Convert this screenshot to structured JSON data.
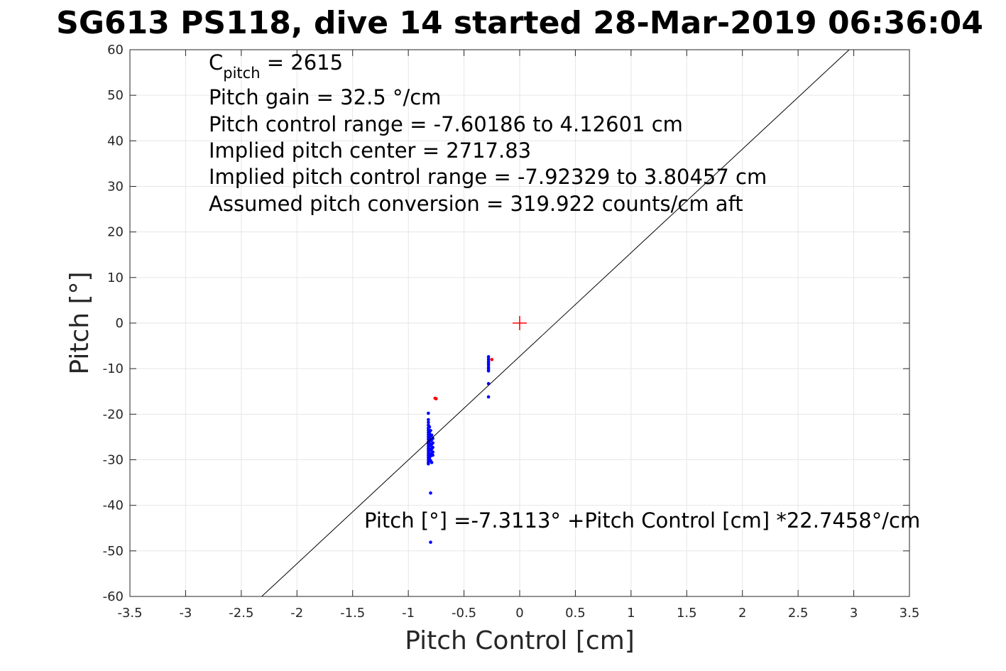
{
  "chart_data": {
    "type": "scatter",
    "title": "SG613 PS118, dive 14 started 28-Mar-2019 06:36:04",
    "xlabel": "Pitch Control [cm]",
    "ylabel": "Pitch [°]",
    "xlim": [
      -3.5,
      3.5
    ],
    "ylim": [
      -60,
      60
    ],
    "xticks": [
      -3.5,
      -3,
      -2.5,
      -2,
      -1.5,
      -1,
      -0.5,
      0,
      0.5,
      1,
      1.5,
      2,
      2.5,
      3,
      3.5
    ],
    "xtick_labels": [
      "-3.5",
      "-3",
      "-2.5",
      "-2",
      "-1.5",
      "-1",
      "-0.5",
      "0",
      "0.5",
      "1",
      "1.5",
      "2",
      "2.5",
      "3",
      "3.5"
    ],
    "yticks": [
      -60,
      -50,
      -40,
      -30,
      -20,
      -10,
      0,
      10,
      20,
      30,
      40,
      50,
      60
    ],
    "ytick_labels": [
      "-60",
      "-50",
      "-40",
      "-30",
      "-20",
      "-10",
      "0",
      "10",
      "20",
      "30",
      "40",
      "50",
      "60"
    ],
    "grid": true,
    "colors": {
      "good": "#0000ff",
      "flagged": "#ff0000",
      "fit": "#000000",
      "center": "#ff0000"
    },
    "series": [
      {
        "points": [
          [
            -0.82,
            -19.8
          ],
          [
            -0.82,
            -21.2
          ],
          [
            -0.82,
            -21.8
          ],
          [
            -0.82,
            -22.4
          ],
          [
            -0.82,
            -23.0
          ],
          [
            -0.82,
            -23.5
          ],
          [
            -0.82,
            -24.0
          ],
          [
            -0.82,
            -24.5
          ],
          [
            -0.82,
            -25.0
          ],
          [
            -0.82,
            -25.5
          ],
          [
            -0.82,
            -26.0
          ],
          [
            -0.82,
            -26.5
          ],
          [
            -0.82,
            -27.0
          ],
          [
            -0.82,
            -27.5
          ],
          [
            -0.82,
            -28.0
          ],
          [
            -0.82,
            -28.5
          ],
          [
            -0.82,
            -29.0
          ],
          [
            -0.82,
            -29.5
          ],
          [
            -0.82,
            -30.0
          ],
          [
            -0.82,
            -30.5
          ],
          [
            -0.82,
            -30.9
          ],
          [
            -0.81,
            -22.8
          ],
          [
            -0.81,
            -24.2
          ],
          [
            -0.81,
            -25.3
          ],
          [
            -0.81,
            -26.4
          ],
          [
            -0.81,
            -27.6
          ],
          [
            -0.81,
            -28.6
          ],
          [
            -0.81,
            -29.8
          ],
          [
            -0.8,
            -23.6
          ],
          [
            -0.8,
            -24.8
          ],
          [
            -0.8,
            -25.8
          ],
          [
            -0.8,
            -26.9
          ],
          [
            -0.8,
            -27.9
          ],
          [
            -0.8,
            -29.2
          ],
          [
            -0.8,
            -30.2
          ],
          [
            -0.79,
            -24.6
          ],
          [
            -0.79,
            -25.6
          ],
          [
            -0.79,
            -26.6
          ],
          [
            -0.79,
            -27.6
          ],
          [
            -0.79,
            -28.6
          ],
          [
            -0.79,
            -30.6
          ],
          [
            -0.78,
            -25.3
          ],
          [
            -0.78,
            -26.3
          ],
          [
            -0.78,
            -27.3
          ],
          [
            -0.78,
            -28.3
          ],
          [
            -0.78,
            -29.0
          ],
          [
            -0.8,
            -37.3
          ],
          [
            -0.8,
            -48.1
          ],
          [
            -0.28,
            -7.4
          ],
          [
            -0.28,
            -7.9
          ],
          [
            -0.28,
            -8.4
          ],
          [
            -0.28,
            -8.8
          ],
          [
            -0.28,
            -9.2
          ],
          [
            -0.28,
            -9.7
          ],
          [
            -0.28,
            -10.1
          ],
          [
            -0.28,
            -10.5
          ],
          [
            -0.28,
            -13.3
          ],
          [
            -0.28,
            -16.2
          ]
        ]
      },
      {
        "points": [
          [
            -0.76,
            -16.5
          ],
          [
            -0.75,
            -16.6
          ],
          [
            -0.25,
            -8.0
          ]
        ]
      }
    ],
    "fit_line": {
      "intercept": -7.3113,
      "slope": 22.7458
    },
    "center_marker": [
      0,
      0
    ],
    "annotations": {
      "c_pitch_main": "C",
      "c_pitch_sub": "pitch",
      "c_pitch_value": " = 2615",
      "pitch_gain": "Pitch gain = 32.5 °/cm",
      "control_range": "Pitch control range = -7.60186 to 4.12601 cm",
      "implied_center": "Implied pitch center = 2717.83",
      "implied_range": "Implied pitch control range = -7.92329 to 3.80457 cm",
      "conversion": "Assumed pitch conversion = 319.922 counts/cm aft",
      "fit_equation": "Pitch [°] =-7.3113° +Pitch Control [cm] *22.7458°/cm"
    }
  }
}
